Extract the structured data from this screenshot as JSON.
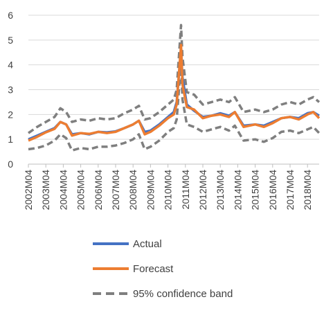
{
  "chart_data": {
    "type": "line",
    "xlabel": "",
    "ylabel": "",
    "ylim": [
      0,
      6
    ],
    "yticks": [
      0,
      1,
      2,
      3,
      4,
      5,
      6
    ],
    "grid": "horizontal",
    "legend_position": "bottom",
    "x_tick_labels": [
      "2002M04",
      "2003M04",
      "2004M04",
      "2005M04",
      "2006M04",
      "2007M04",
      "2008M04",
      "2009M04",
      "2010M04",
      "2011M04",
      "2012M04",
      "2013M04",
      "2014M04",
      "2015M04",
      "2016M04",
      "2017M04",
      "2018M04"
    ],
    "x_start": "2002M04",
    "x_end": "2018M12",
    "series": [
      {
        "name": "Actual",
        "color": "#4472C4",
        "style": "solid",
        "points": [
          [
            "2002M04",
            1.0
          ],
          [
            "2002M10",
            1.15
          ],
          [
            "2003M04",
            1.3
          ],
          [
            "2003M10",
            1.45
          ],
          [
            "2004M02",
            1.7
          ],
          [
            "2004M06",
            1.6
          ],
          [
            "2004M10",
            1.2
          ],
          [
            "2005M04",
            1.25
          ],
          [
            "2005M10",
            1.2
          ],
          [
            "2006M04",
            1.3
          ],
          [
            "2006M10",
            1.28
          ],
          [
            "2007M04",
            1.32
          ],
          [
            "2007M10",
            1.45
          ],
          [
            "2008M04",
            1.6
          ],
          [
            "2008M08",
            1.75
          ],
          [
            "2008M12",
            1.3
          ],
          [
            "2009M04",
            1.35
          ],
          [
            "2009M10",
            1.6
          ],
          [
            "2010M04",
            1.9
          ],
          [
            "2010M08",
            2.1
          ],
          [
            "2010M10",
            2.5
          ],
          [
            "2011M01",
            4.6
          ],
          [
            "2011M02",
            3.5
          ],
          [
            "2011M05",
            2.4
          ],
          [
            "2011M10",
            2.15
          ],
          [
            "2012M04",
            1.9
          ],
          [
            "2012M10",
            1.95
          ],
          [
            "2013M04",
            2.05
          ],
          [
            "2013M10",
            1.95
          ],
          [
            "2014M02",
            2.1
          ],
          [
            "2014M08",
            1.55
          ],
          [
            "2015M04",
            1.6
          ],
          [
            "2015M10",
            1.55
          ],
          [
            "2016M04",
            1.7
          ],
          [
            "2016M10",
            1.85
          ],
          [
            "2017M04",
            1.9
          ],
          [
            "2017M10",
            1.85
          ],
          [
            "2018M04",
            2.05
          ],
          [
            "2018M08",
            2.1
          ],
          [
            "2018M12",
            1.95
          ]
        ]
      },
      {
        "name": "Forecast",
        "color": "#ED7D31",
        "style": "solid",
        "points": [
          [
            "2002M04",
            0.95
          ],
          [
            "2002M10",
            1.1
          ],
          [
            "2003M04",
            1.28
          ],
          [
            "2003M10",
            1.42
          ],
          [
            "2004M02",
            1.7
          ],
          [
            "2004M06",
            1.6
          ],
          [
            "2004M10",
            1.15
          ],
          [
            "2005M04",
            1.25
          ],
          [
            "2005M10",
            1.22
          ],
          [
            "2006M04",
            1.3
          ],
          [
            "2006M10",
            1.25
          ],
          [
            "2007M04",
            1.3
          ],
          [
            "2007M10",
            1.45
          ],
          [
            "2008M04",
            1.6
          ],
          [
            "2008M08",
            1.75
          ],
          [
            "2008M12",
            1.2
          ],
          [
            "2009M04",
            1.3
          ],
          [
            "2009M10",
            1.55
          ],
          [
            "2010M04",
            1.85
          ],
          [
            "2010M08",
            2.0
          ],
          [
            "2010M10",
            2.4
          ],
          [
            "2011M01",
            4.8
          ],
          [
            "2011M02",
            3.2
          ],
          [
            "2011M05",
            2.3
          ],
          [
            "2011M10",
            2.2
          ],
          [
            "2012M04",
            1.85
          ],
          [
            "2012M10",
            1.95
          ],
          [
            "2013M04",
            2.0
          ],
          [
            "2013M10",
            1.9
          ],
          [
            "2014M02",
            2.1
          ],
          [
            "2014M08",
            1.5
          ],
          [
            "2015M04",
            1.6
          ],
          [
            "2015M10",
            1.5
          ],
          [
            "2016M04",
            1.65
          ],
          [
            "2016M10",
            1.85
          ],
          [
            "2017M04",
            1.9
          ],
          [
            "2017M10",
            1.8
          ],
          [
            "2018M04",
            2.0
          ],
          [
            "2018M08",
            2.1
          ],
          [
            "2018M12",
            1.85
          ]
        ]
      },
      {
        "name": "95% confidence band",
        "color": "#7F7F7F",
        "style": "dashed",
        "points": [
          [
            "2002M04",
            1.25
          ],
          [
            "2002M10",
            1.5
          ],
          [
            "2003M04",
            1.7
          ],
          [
            "2003M10",
            1.9
          ],
          [
            "2004M02",
            2.25
          ],
          [
            "2004M06",
            2.1
          ],
          [
            "2004M10",
            1.7
          ],
          [
            "2005M04",
            1.8
          ],
          [
            "2005M10",
            1.75
          ],
          [
            "2006M04",
            1.85
          ],
          [
            "2006M10",
            1.8
          ],
          [
            "2007M04",
            1.85
          ],
          [
            "2007M10",
            2.05
          ],
          [
            "2008M04",
            2.2
          ],
          [
            "2008M08",
            2.35
          ],
          [
            "2008M12",
            1.8
          ],
          [
            "2009M04",
            1.85
          ],
          [
            "2009M10",
            2.1
          ],
          [
            "2010M04",
            2.4
          ],
          [
            "2010M08",
            2.6
          ],
          [
            "2010M10",
            3.0
          ],
          [
            "2011M01",
            5.6
          ],
          [
            "2011M02",
            4.3
          ],
          [
            "2011M05",
            2.9
          ],
          [
            "2011M10",
            2.8
          ],
          [
            "2012M04",
            2.4
          ],
          [
            "2012M10",
            2.5
          ],
          [
            "2013M04",
            2.6
          ],
          [
            "2013M10",
            2.5
          ],
          [
            "2014M02",
            2.7
          ],
          [
            "2014M08",
            2.1
          ],
          [
            "2015M04",
            2.2
          ],
          [
            "2015M10",
            2.1
          ],
          [
            "2016M04",
            2.2
          ],
          [
            "2016M10",
            2.4
          ],
          [
            "2017M04",
            2.5
          ],
          [
            "2017M10",
            2.4
          ],
          [
            "2018M04",
            2.6
          ],
          [
            "2018M08",
            2.7
          ],
          [
            "2018M12",
            2.5
          ]
        ]
      },
      {
        "name": "95% confidence band",
        "color": "#7F7F7F",
        "style": "dashed",
        "legend": false,
        "points": [
          [
            "2002M04",
            0.6
          ],
          [
            "2002M10",
            0.65
          ],
          [
            "2003M04",
            0.75
          ],
          [
            "2003M10",
            0.95
          ],
          [
            "2004M02",
            1.2
          ],
          [
            "2004M06",
            1.05
          ],
          [
            "2004M10",
            0.55
          ],
          [
            "2005M04",
            0.65
          ],
          [
            "2005M10",
            0.6
          ],
          [
            "2006M04",
            0.7
          ],
          [
            "2006M10",
            0.7
          ],
          [
            "2007M04",
            0.75
          ],
          [
            "2007M10",
            0.85
          ],
          [
            "2008M04",
            1.0
          ],
          [
            "2008M08",
            1.2
          ],
          [
            "2008M12",
            0.6
          ],
          [
            "2009M04",
            0.7
          ],
          [
            "2009M10",
            0.95
          ],
          [
            "2010M04",
            1.3
          ],
          [
            "2010M08",
            1.45
          ],
          [
            "2010M10",
            1.8
          ],
          [
            "2011M01",
            4.1
          ],
          [
            "2011M02",
            2.6
          ],
          [
            "2011M05",
            1.6
          ],
          [
            "2011M10",
            1.5
          ],
          [
            "2012M04",
            1.3
          ],
          [
            "2012M10",
            1.4
          ],
          [
            "2013M04",
            1.5
          ],
          [
            "2013M10",
            1.35
          ],
          [
            "2014M02",
            1.55
          ],
          [
            "2014M08",
            0.95
          ],
          [
            "2015M04",
            1.0
          ],
          [
            "2015M10",
            0.9
          ],
          [
            "2016M04",
            1.05
          ],
          [
            "2016M10",
            1.3
          ],
          [
            "2017M04",
            1.35
          ],
          [
            "2017M10",
            1.25
          ],
          [
            "2018M04",
            1.4
          ],
          [
            "2018M08",
            1.5
          ],
          [
            "2018M12",
            1.25
          ]
        ]
      }
    ]
  }
}
